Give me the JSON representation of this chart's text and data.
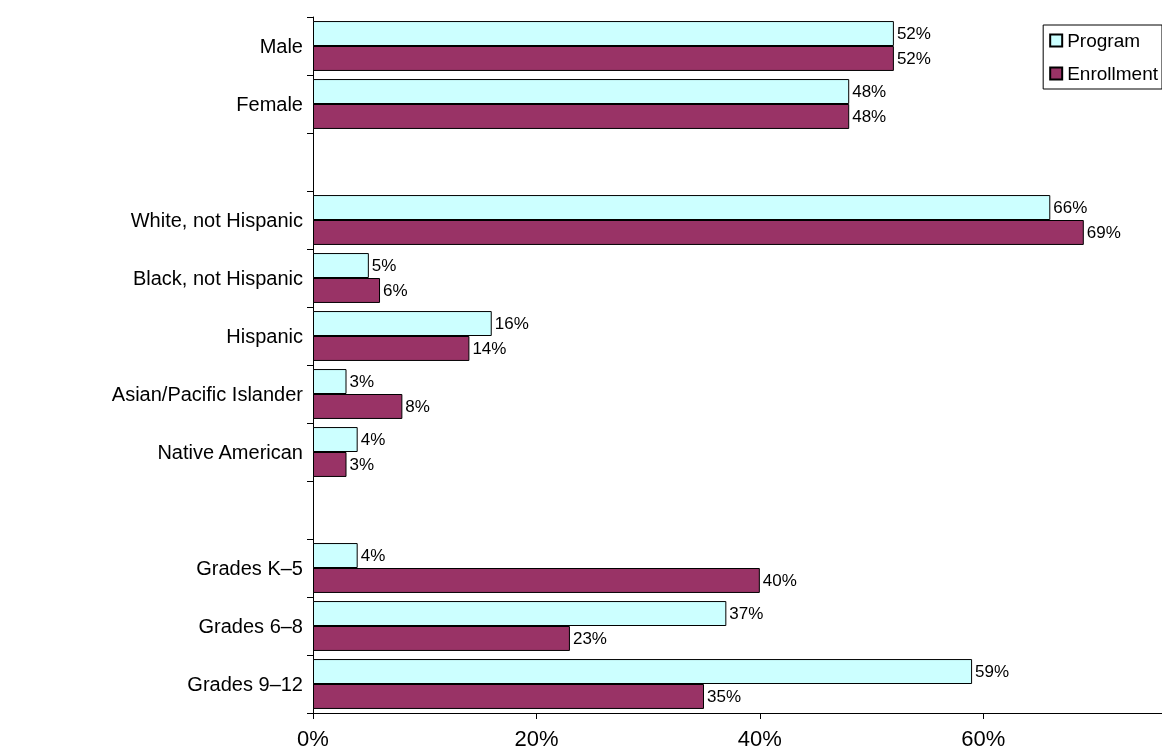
{
  "chart_data": {
    "type": "bar",
    "orientation": "horizontal",
    "categories": [
      "Male",
      "Female",
      null,
      "White, not Hispanic",
      "Black, not Hispanic",
      "Hispanic",
      "Asian/Pacific Islander",
      "Native American",
      null,
      "Grades K–5",
      "Grades 6–8",
      "Grades 9–12"
    ],
    "series": [
      {
        "name": "Program",
        "color": "#ccffff",
        "values": [
          52,
          48,
          null,
          66,
          5,
          16,
          3,
          4,
          null,
          4,
          37,
          59
        ],
        "value_labels": [
          "52%",
          "48%",
          null,
          "66%",
          "5%",
          "16%",
          "3%",
          "4%",
          null,
          "4%",
          "37%",
          "59%"
        ]
      },
      {
        "name": "Enrollment",
        "color": "#993366",
        "values": [
          52,
          48,
          null,
          69,
          6,
          14,
          8,
          3,
          null,
          40,
          23,
          35
        ],
        "value_labels": [
          "52%",
          "48%",
          null,
          "69%",
          "6%",
          "14%",
          "8%",
          "3%",
          null,
          "40%",
          "23%",
          "35%"
        ]
      }
    ],
    "xlim": [
      0,
      76
    ],
    "xticks": [
      {
        "value": 0,
        "label": "0%"
      },
      {
        "value": 20,
        "label": "20%"
      },
      {
        "value": 40,
        "label": "40%"
      },
      {
        "value": 60,
        "label": "60%"
      }
    ],
    "grid": false,
    "legend": "top right"
  }
}
